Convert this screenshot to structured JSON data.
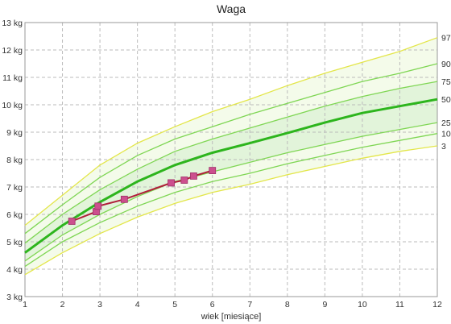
{
  "chart_data": {
    "type": "line",
    "title": "Waga",
    "xlabel": "wiek [miesiące]",
    "ylabel": "",
    "xlim": [
      1,
      12
    ],
    "ylim": [
      3,
      13
    ],
    "x_ticks": [
      "1",
      "2",
      "3",
      "4",
      "5",
      "6",
      "7",
      "8",
      "9",
      "10",
      "11",
      "12"
    ],
    "y_ticks": [
      "3 kg",
      "4 kg",
      "5 kg",
      "6 kg",
      "7 kg",
      "8 kg",
      "9 kg",
      "10 kg",
      "11 kg",
      "12 kg",
      "13 kg"
    ],
    "grid": true,
    "months": [
      1,
      2,
      3,
      4,
      5,
      6,
      7,
      8,
      9,
      10,
      11,
      12
    ],
    "percentiles": [
      {
        "name": "3",
        "values": [
          3.8,
          4.6,
          5.3,
          5.9,
          6.4,
          6.8,
          7.1,
          7.45,
          7.75,
          8.05,
          8.3,
          8.5
        ]
      },
      {
        "name": "10",
        "values": [
          4.1,
          5.0,
          5.7,
          6.3,
          6.8,
          7.2,
          7.5,
          7.85,
          8.15,
          8.45,
          8.7,
          8.95
        ]
      },
      {
        "name": "25",
        "values": [
          4.3,
          5.25,
          6.0,
          6.65,
          7.2,
          7.55,
          7.9,
          8.25,
          8.55,
          8.85,
          9.1,
          9.35
        ]
      },
      {
        "name": "50",
        "values": [
          4.6,
          5.6,
          6.45,
          7.2,
          7.8,
          8.25,
          8.6,
          8.97,
          9.35,
          9.7,
          9.95,
          10.2
        ]
      },
      {
        "name": "75",
        "values": [
          4.95,
          6.0,
          6.9,
          7.65,
          8.3,
          8.75,
          9.15,
          9.55,
          9.95,
          10.3,
          10.6,
          10.85
        ]
      },
      {
        "name": "90",
        "values": [
          5.3,
          6.35,
          7.35,
          8.15,
          8.75,
          9.2,
          9.65,
          10.05,
          10.45,
          10.85,
          11.15,
          11.5
        ]
      },
      {
        "name": "97",
        "values": [
          5.6,
          6.7,
          7.8,
          8.6,
          9.2,
          9.75,
          10.2,
          10.7,
          11.15,
          11.55,
          11.95,
          12.45
        ]
      }
    ],
    "measurements": {
      "x": [
        2.25,
        2.9,
        2.95,
        3.65,
        4.9,
        5.25,
        5.5,
        6.0
      ],
      "y": [
        5.75,
        6.1,
        6.3,
        6.55,
        7.15,
        7.25,
        7.4,
        7.6
      ]
    },
    "colors": {
      "outer_curves": "#e3e64a",
      "inner_curves": "#7fd654",
      "median": "#2db51d",
      "outer_band": "#f4fbea",
      "inner_band": "#e2f4da",
      "measurement_line": "#b01f3a",
      "measurement_marker": "#cc4f8e",
      "grid": "#bbbbbb"
    }
  }
}
